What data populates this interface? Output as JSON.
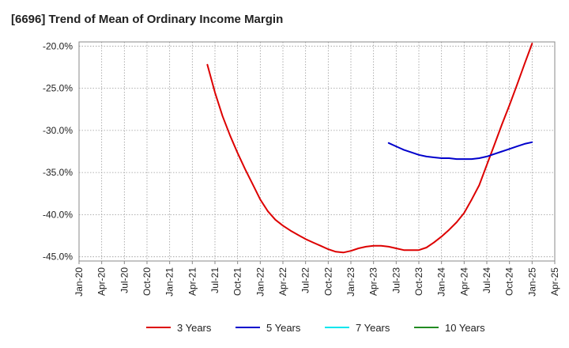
{
  "chart_data": {
    "type": "line",
    "title": "[6696]  Trend of Mean of Ordinary Income Margin",
    "xlabel": "",
    "ylabel": "",
    "ylim": [
      -45.5,
      -19.5
    ],
    "grid": true,
    "legend_position": "bottom",
    "y_ticks": [
      -20.0,
      -25.0,
      -30.0,
      -35.0,
      -40.0,
      -45.0
    ],
    "y_tick_labels": [
      "-20.0%",
      "-25.0%",
      "-30.0%",
      "-35.0%",
      "-40.0%",
      "-45.0%"
    ],
    "x_tick_labels": [
      "Jan-20",
      "Apr-20",
      "Jul-20",
      "Oct-20",
      "Jan-21",
      "Apr-21",
      "Jul-21",
      "Oct-21",
      "Jan-22",
      "Apr-22",
      "Jul-22",
      "Oct-22",
      "Jan-23",
      "Apr-23",
      "Jul-23",
      "Oct-23",
      "Jan-24",
      "Apr-24",
      "Jul-24",
      "Oct-24",
      "Jan-25",
      "Apr-25"
    ],
    "series": [
      {
        "name": "3 Years",
        "color": "#dd0000",
        "points": [
          [
            "Jun-21",
            -22.2
          ],
          [
            "Jul-21",
            -25.5
          ],
          [
            "Aug-21",
            -28.3
          ],
          [
            "Sep-21",
            -30.6
          ],
          [
            "Oct-21",
            -32.7
          ],
          [
            "Nov-21",
            -34.6
          ],
          [
            "Dec-21",
            -36.4
          ],
          [
            "Jan-22",
            -38.2
          ],
          [
            "Feb-22",
            -39.6
          ],
          [
            "Mar-22",
            -40.6
          ],
          [
            "Apr-22",
            -41.3
          ],
          [
            "May-22",
            -41.9
          ],
          [
            "Jun-22",
            -42.4
          ],
          [
            "Jul-22",
            -42.9
          ],
          [
            "Aug-22",
            -43.3
          ],
          [
            "Sep-22",
            -43.7
          ],
          [
            "Oct-22",
            -44.1
          ],
          [
            "Nov-22",
            -44.4
          ],
          [
            "Dec-22",
            -44.5
          ],
          [
            "Jan-23",
            -44.3
          ],
          [
            "Feb-23",
            -44.0
          ],
          [
            "Mar-23",
            -43.8
          ],
          [
            "Apr-23",
            -43.7
          ],
          [
            "May-23",
            -43.7
          ],
          [
            "Jun-23",
            -43.8
          ],
          [
            "Jul-23",
            -44.0
          ],
          [
            "Aug-23",
            -44.2
          ],
          [
            "Sep-23",
            -44.2
          ],
          [
            "Oct-23",
            -44.2
          ],
          [
            "Nov-23",
            -43.9
          ],
          [
            "Dec-23",
            -43.3
          ],
          [
            "Jan-24",
            -42.6
          ],
          [
            "Feb-24",
            -41.8
          ],
          [
            "Mar-24",
            -40.9
          ],
          [
            "Apr-24",
            -39.8
          ],
          [
            "May-24",
            -38.2
          ],
          [
            "Jun-24",
            -36.5
          ],
          [
            "Jul-24",
            -34.1
          ],
          [
            "Aug-24",
            -31.7
          ],
          [
            "Sep-24",
            -29.3
          ],
          [
            "Oct-24",
            -27.0
          ],
          [
            "Nov-24",
            -24.6
          ],
          [
            "Dec-24",
            -22.1
          ],
          [
            "Jan-25",
            -19.7
          ]
        ]
      },
      {
        "name": "5 Years",
        "color": "#0000cc",
        "points": [
          [
            "Jun-23",
            -31.5
          ],
          [
            "Jul-23",
            -31.9
          ],
          [
            "Aug-23",
            -32.3
          ],
          [
            "Sep-23",
            -32.6
          ],
          [
            "Oct-23",
            -32.9
          ],
          [
            "Nov-23",
            -33.1
          ],
          [
            "Dec-23",
            -33.2
          ],
          [
            "Jan-24",
            -33.3
          ],
          [
            "Feb-24",
            -33.3
          ],
          [
            "Mar-24",
            -33.4
          ],
          [
            "Apr-24",
            -33.4
          ],
          [
            "May-24",
            -33.4
          ],
          [
            "Jun-24",
            -33.3
          ],
          [
            "Jul-24",
            -33.1
          ],
          [
            "Aug-24",
            -32.8
          ],
          [
            "Sep-24",
            -32.5
          ],
          [
            "Oct-24",
            -32.2
          ],
          [
            "Nov-24",
            -31.9
          ],
          [
            "Dec-24",
            -31.6
          ],
          [
            "Jan-25",
            -31.4
          ]
        ]
      },
      {
        "name": "7 Years",
        "color": "#00e5ee",
        "points": []
      },
      {
        "name": "10 Years",
        "color": "#228b22",
        "points": []
      }
    ]
  }
}
